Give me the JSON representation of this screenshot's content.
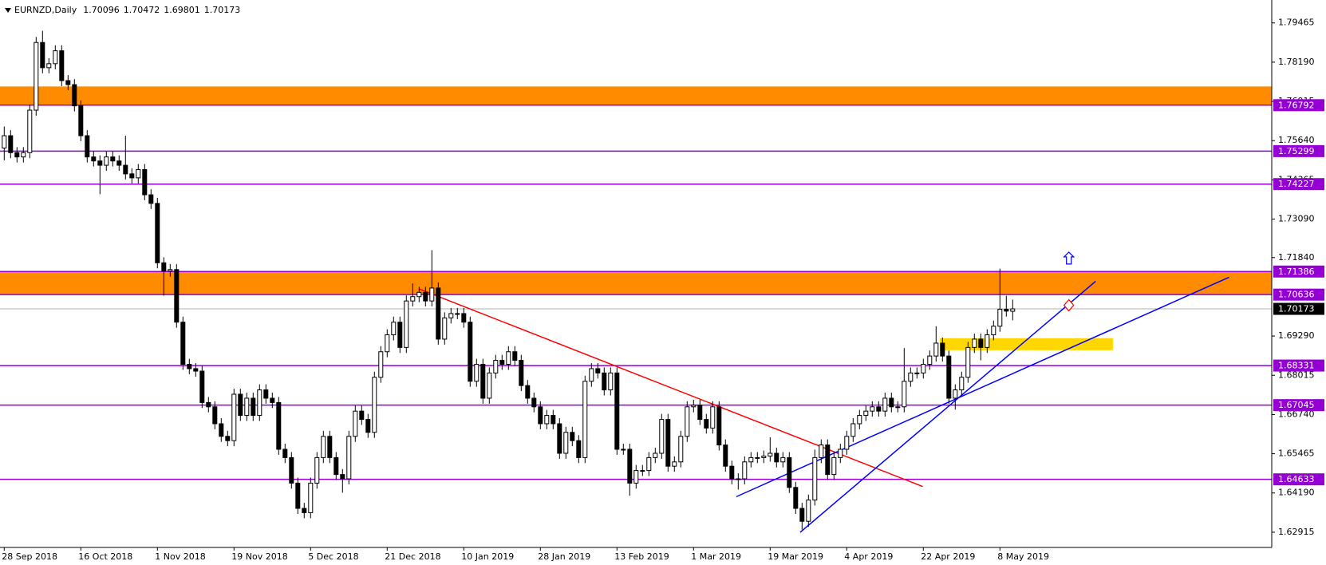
{
  "chart_data": {
    "type": "candlestick",
    "title": "EURNZD,Daily",
    "categories": [
      "28 Sep 2018",
      null,
      null,
      null,
      null,
      null,
      null,
      null,
      null,
      null,
      null,
      null,
      "16 Oct 2018",
      null,
      null,
      null,
      null,
      null,
      null,
      null,
      null,
      null,
      null,
      null,
      "1 Nov 2018",
      null,
      null,
      null,
      null,
      null,
      null,
      null,
      null,
      null,
      null,
      null,
      "19 Nov 2018",
      null,
      null,
      null,
      null,
      null,
      null,
      null,
      null,
      null,
      null,
      null,
      "5 Dec 2018",
      null,
      null,
      null,
      null,
      null,
      null,
      null,
      null,
      null,
      null,
      null,
      "21 Dec 2018",
      null,
      null,
      null,
      null,
      null,
      null,
      null,
      null,
      null,
      null,
      null,
      "10 Jan 2019",
      null,
      null,
      null,
      null,
      null,
      null,
      null,
      null,
      null,
      null,
      null,
      "28 Jan 2019",
      null,
      null,
      null,
      null,
      null,
      null,
      null,
      null,
      null,
      null,
      null,
      "13 Feb 2019",
      null,
      null,
      null,
      null,
      null,
      null,
      null,
      null,
      null,
      null,
      null,
      "1 Mar 2019",
      null,
      null,
      null,
      null,
      null,
      null,
      null,
      null,
      null,
      null,
      null,
      "19 Mar 2019",
      null,
      null,
      null,
      null,
      null,
      null,
      null,
      null,
      null,
      null,
      null,
      "4 Apr 2019",
      null,
      null,
      null,
      null,
      null,
      null,
      null,
      null,
      null,
      null,
      null,
      "22 Apr 2019",
      null,
      null,
      null,
      null,
      null,
      null,
      null,
      null,
      null,
      null,
      null,
      "8 May 2019",
      null,
      null
    ],
    "ohlc": [
      [
        1.754,
        1.761,
        1.75,
        1.758
      ],
      [
        1.758,
        1.7598,
        1.7507,
        1.7525
      ],
      [
        1.7525,
        1.7543,
        1.7493,
        1.7511
      ],
      [
        1.7511,
        1.7543,
        1.7493,
        1.7525
      ],
      [
        1.7525,
        1.7681,
        1.7507,
        1.7663
      ],
      [
        1.7663,
        1.7901,
        1.7645,
        1.7883
      ],
      [
        1.7883,
        1.7921,
        1.7783,
        1.7801
      ],
      [
        1.7801,
        1.7832,
        1.7783,
        1.7814
      ],
      [
        1.7814,
        1.7874,
        1.7796,
        1.7856
      ],
      [
        1.7856,
        1.7874,
        1.7741,
        1.7759
      ],
      [
        1.7759,
        1.7777,
        1.7728,
        1.7746
      ],
      [
        1.7746,
        1.7764,
        1.7659,
        1.7677
      ],
      [
        1.7677,
        1.7695,
        1.7562,
        1.758
      ],
      [
        1.758,
        1.7598,
        1.7493,
        1.7511
      ],
      [
        1.7511,
        1.7529,
        1.748,
        1.7498
      ],
      [
        1.7498,
        1.7516,
        1.739,
        1.7484
      ],
      [
        1.7484,
        1.7529,
        1.7466,
        1.7511
      ],
      [
        1.7511,
        1.7529,
        1.748,
        1.7498
      ],
      [
        1.7498,
        1.7516,
        1.7466,
        1.7484
      ],
      [
        1.7484,
        1.758,
        1.7438,
        1.7456
      ],
      [
        1.7456,
        1.7474,
        1.7425,
        1.7443
      ],
      [
        1.7443,
        1.7488,
        1.7425,
        1.747
      ],
      [
        1.747,
        1.7488,
        1.737,
        1.7388
      ],
      [
        1.7388,
        1.7406,
        1.7342,
        1.736
      ],
      [
        1.736,
        1.7378,
        1.7149,
        1.7167
      ],
      [
        1.7167,
        1.7185,
        1.706,
        1.714
      ],
      [
        1.714,
        1.7163,
        1.7122,
        1.7145
      ],
      [
        1.7145,
        1.7163,
        1.6956,
        1.6974
      ],
      [
        1.6974,
        1.6992,
        1.6819,
        1.6837
      ],
      [
        1.6837,
        1.6855,
        1.6805,
        1.6823
      ],
      [
        1.6823,
        1.6841,
        1.6797,
        1.6815
      ],
      [
        1.6815,
        1.6833,
        1.6695,
        1.6713
      ],
      [
        1.6713,
        1.6731,
        1.6681,
        1.6699
      ],
      [
        1.6699,
        1.6717,
        1.6626,
        1.6644
      ],
      [
        1.6644,
        1.6662,
        1.6585,
        1.6603
      ],
      [
        1.6603,
        1.6621,
        1.6571,
        1.6589
      ],
      [
        1.6589,
        1.6758,
        1.6571,
        1.674
      ],
      [
        1.674,
        1.6758,
        1.6653,
        1.6671
      ],
      [
        1.6671,
        1.6745,
        1.6653,
        1.6727
      ],
      [
        1.6727,
        1.6745,
        1.6653,
        1.6671
      ],
      [
        1.6671,
        1.6772,
        1.6653,
        1.6754
      ],
      [
        1.6754,
        1.6772,
        1.6709,
        1.6727
      ],
      [
        1.6727,
        1.6745,
        1.6695,
        1.6713
      ],
      [
        1.6713,
        1.6731,
        1.6543,
        1.6561
      ],
      [
        1.6561,
        1.6579,
        1.6516,
        1.6534
      ],
      [
        1.6534,
        1.6552,
        1.6433,
        1.6451
      ],
      [
        1.6451,
        1.6469,
        1.6351,
        1.6369
      ],
      [
        1.6369,
        1.6387,
        1.6337,
        1.6355
      ],
      [
        1.6355,
        1.6469,
        1.6337,
        1.6451
      ],
      [
        1.6451,
        1.6552,
        1.6433,
        1.6534
      ],
      [
        1.6534,
        1.6621,
        1.6516,
        1.6603
      ],
      [
        1.6603,
        1.6621,
        1.6516,
        1.6534
      ],
      [
        1.6534,
        1.6552,
        1.6461,
        1.6479
      ],
      [
        1.6479,
        1.6497,
        1.642,
        1.6465
      ],
      [
        1.6465,
        1.6621,
        1.6447,
        1.6603
      ],
      [
        1.6603,
        1.6703,
        1.6585,
        1.6685
      ],
      [
        1.6685,
        1.6703,
        1.664,
        1.6658
      ],
      [
        1.6658,
        1.6676,
        1.6598,
        1.6616
      ],
      [
        1.6616,
        1.6813,
        1.6598,
        1.6795
      ],
      [
        1.6795,
        1.6896,
        1.6777,
        1.6878
      ],
      [
        1.6878,
        1.6951,
        1.686,
        1.6933
      ],
      [
        1.6933,
        1.6992,
        1.6915,
        1.6974
      ],
      [
        1.6974,
        1.6992,
        1.6874,
        1.6892
      ],
      [
        1.6892,
        1.7061,
        1.6874,
        1.7043
      ],
      [
        1.7043,
        1.71,
        1.7025,
        1.7057
      ],
      [
        1.7057,
        1.7089,
        1.7039,
        1.7071
      ],
      [
        1.7071,
        1.7089,
        1.7025,
        1.7043
      ],
      [
        1.7043,
        1.7208,
        1.7025,
        1.7085
      ],
      [
        1.7085,
        1.7103,
        1.6901,
        1.6919
      ],
      [
        1.6919,
        1.7006,
        1.6901,
        1.6988
      ],
      [
        1.6988,
        1.702,
        1.697,
        1.7002
      ],
      [
        1.7002,
        1.702,
        1.6984,
        1.7002
      ],
      [
        1.7002,
        1.702,
        1.6956,
        1.6974
      ],
      [
        1.6974,
        1.6992,
        1.6764,
        1.6782
      ],
      [
        1.6782,
        1.6855,
        1.6764,
        1.6837
      ],
      [
        1.6837,
        1.6855,
        1.6709,
        1.6727
      ],
      [
        1.6727,
        1.6827,
        1.6709,
        1.6809
      ],
      [
        1.6809,
        1.6868,
        1.6791,
        1.685
      ],
      [
        1.685,
        1.6868,
        1.6819,
        1.6837
      ],
      [
        1.6837,
        1.6896,
        1.6819,
        1.6878
      ],
      [
        1.6878,
        1.6896,
        1.6832,
        1.685
      ],
      [
        1.685,
        1.6868,
        1.675,
        1.6768
      ],
      [
        1.6768,
        1.6786,
        1.6709,
        1.6727
      ],
      [
        1.6727,
        1.6745,
        1.6681,
        1.6699
      ],
      [
        1.6699,
        1.6717,
        1.6626,
        1.6644
      ],
      [
        1.6644,
        1.6689,
        1.6626,
        1.6671
      ],
      [
        1.6671,
        1.6689,
        1.6626,
        1.6644
      ],
      [
        1.6644,
        1.6662,
        1.653,
        1.6548
      ],
      [
        1.6548,
        1.6634,
        1.653,
        1.6616
      ],
      [
        1.6616,
        1.6634,
        1.6571,
        1.6589
      ],
      [
        1.6589,
        1.6607,
        1.6516,
        1.6534
      ],
      [
        1.6534,
        1.68,
        1.6516,
        1.6782
      ],
      [
        1.6782,
        1.6841,
        1.6764,
        1.6823
      ],
      [
        1.6823,
        1.6841,
        1.6791,
        1.6809
      ],
      [
        1.6809,
        1.6827,
        1.6736,
        1.6754
      ],
      [
        1.6754,
        1.6827,
        1.6736,
        1.6809
      ],
      [
        1.6809,
        1.6827,
        1.6543,
        1.6561
      ],
      [
        1.6561,
        1.6579,
        1.6543,
        1.6561
      ],
      [
        1.6561,
        1.6579,
        1.641,
        1.6451
      ],
      [
        1.6451,
        1.651,
        1.6433,
        1.6492
      ],
      [
        1.6492,
        1.651,
        1.6474,
        1.6492
      ],
      [
        1.6492,
        1.6552,
        1.6474,
        1.6534
      ],
      [
        1.6534,
        1.6566,
        1.6516,
        1.6548
      ],
      [
        1.6548,
        1.6676,
        1.653,
        1.6658
      ],
      [
        1.6658,
        1.6676,
        1.6488,
        1.6506
      ],
      [
        1.6506,
        1.6538,
        1.6488,
        1.652
      ],
      [
        1.652,
        1.6621,
        1.6502,
        1.6603
      ],
      [
        1.6603,
        1.6717,
        1.6585,
        1.6699
      ],
      [
        1.6699,
        1.6722,
        1.6681,
        1.6704
      ],
      [
        1.6704,
        1.6722,
        1.664,
        1.6658
      ],
      [
        1.6658,
        1.6676,
        1.6612,
        1.663
      ],
      [
        1.663,
        1.6717,
        1.6612,
        1.6699
      ],
      [
        1.6699,
        1.6717,
        1.6557,
        1.6575
      ],
      [
        1.6575,
        1.6593,
        1.6488,
        1.6506
      ],
      [
        1.6506,
        1.6524,
        1.6447,
        1.6465
      ],
      [
        1.6465,
        1.6483,
        1.643,
        1.6465
      ],
      [
        1.6465,
        1.6538,
        1.6447,
        1.652
      ],
      [
        1.652,
        1.6552,
        1.6502,
        1.6534
      ],
      [
        1.6534,
        1.6552,
        1.6516,
        1.6534
      ],
      [
        1.6534,
        1.6557,
        1.6516,
        1.6539
      ],
      [
        1.6539,
        1.66,
        1.6521,
        1.6548
      ],
      [
        1.6548,
        1.6566,
        1.6502,
        1.652
      ],
      [
        1.652,
        1.6552,
        1.6502,
        1.6534
      ],
      [
        1.6534,
        1.6552,
        1.6419,
        1.6437
      ],
      [
        1.6437,
        1.6455,
        1.6351,
        1.6369
      ],
      [
        1.6369,
        1.6387,
        1.63,
        1.6327
      ],
      [
        1.6327,
        1.6414,
        1.6309,
        1.6396
      ],
      [
        1.6396,
        1.656,
        1.6378,
        1.6534
      ],
      [
        1.6534,
        1.6593,
        1.6516,
        1.6575
      ],
      [
        1.6575,
        1.6593,
        1.6461,
        1.6479
      ],
      [
        1.6479,
        1.6552,
        1.6461,
        1.6534
      ],
      [
        1.6534,
        1.6579,
        1.6516,
        1.6561
      ],
      [
        1.6561,
        1.6621,
        1.6543,
        1.6603
      ],
      [
        1.6603,
        1.6662,
        1.6585,
        1.6644
      ],
      [
        1.6644,
        1.6689,
        1.6626,
        1.6671
      ],
      [
        1.6671,
        1.6703,
        1.6653,
        1.6685
      ],
      [
        1.6685,
        1.6717,
        1.6667,
        1.6699
      ],
      [
        1.6699,
        1.6717,
        1.6667,
        1.6685
      ],
      [
        1.6685,
        1.6745,
        1.6667,
        1.6727
      ],
      [
        1.6727,
        1.6745,
        1.6681,
        1.6699
      ],
      [
        1.6699,
        1.6717,
        1.6681,
        1.6699
      ],
      [
        1.6699,
        1.689,
        1.6681,
        1.6782
      ],
      [
        1.6782,
        1.6827,
        1.6764,
        1.6809
      ],
      [
        1.6809,
        1.6827,
        1.6791,
        1.6809
      ],
      [
        1.6809,
        1.6855,
        1.6791,
        1.6837
      ],
      [
        1.6837,
        1.6882,
        1.6819,
        1.6864
      ],
      [
        1.6864,
        1.6961,
        1.6846,
        1.6906
      ],
      [
        1.6906,
        1.6924,
        1.6846,
        1.6864
      ],
      [
        1.6864,
        1.6882,
        1.6709,
        1.6727
      ],
      [
        1.6727,
        1.6772,
        1.669,
        1.6754
      ],
      [
        1.6754,
        1.6813,
        1.6736,
        1.6795
      ],
      [
        1.6795,
        1.691,
        1.6777,
        1.6892
      ],
      [
        1.6892,
        1.6937,
        1.6874,
        1.6919
      ],
      [
        1.6919,
        1.6937,
        1.685,
        1.6892
      ],
      [
        1.6892,
        1.6951,
        1.6874,
        1.6933
      ],
      [
        1.6933,
        1.6979,
        1.6915,
        1.6961
      ],
      [
        1.6961,
        1.7148,
        1.6943,
        1.7016
      ],
      [
        1.7016,
        1.706,
        1.6992,
        1.701
      ],
      [
        1.70096,
        1.70472,
        1.69801,
        1.70173
      ]
    ],
    "up_color": "#ffffff",
    "down_color": "#000000",
    "wick_color": "#000000",
    "ylim": [
      1.6242,
      1.8021
    ],
    "yticks": [
      1.79465,
      {
        "value": 1.7819,
        "label": "1.78190"
      },
      1.76915,
      {
        "value": 1.7564,
        "label": "1.75640"
      },
      1.74365,
      {
        "value": 1.7309,
        "label": "1.73090"
      },
      {
        "value": 1.7184,
        "label": "1.71840"
      },
      {
        "value": 1.6929,
        "label": "1.69290"
      },
      1.68015,
      {
        "value": 1.6674,
        "label": "1.66740"
      },
      1.65465,
      {
        "value": 1.6419,
        "label": "1.64190"
      },
      1.62915
    ],
    "levels": [
      1.76792,
      1.75299,
      1.74227,
      1.71386,
      1.70636,
      1.68331,
      1.67045,
      1.64633
    ],
    "level_color": "#9400d3",
    "price_line_color": "#b0b0b0",
    "zones": [
      {
        "from": 1.76792,
        "to": 1.774,
        "color": "#ff8c00"
      },
      {
        "from": 1.70636,
        "to": 1.71386,
        "color": "#ff8c00"
      },
      {
        "from": 1.6883,
        "to": 1.6922,
        "x": [
          146.6,
          173.7
        ],
        "color": "#ffd700"
      }
    ],
    "trendlines": [
      {
        "color": "#ff0000",
        "points": [
          [
            65.0,
            1.7082
          ],
          [
            143.9,
            1.644
          ]
        ]
      },
      {
        "color": "#0000ff",
        "points": [
          [
            114.7,
            1.6407
          ],
          [
            191.9,
            1.712
          ]
        ]
      },
      {
        "color": "#0000ff",
        "points": [
          [
            124.7,
            1.6291
          ],
          [
            171.0,
            1.7107
          ]
        ]
      }
    ],
    "markers": [
      {
        "shape": "up",
        "color": "#0000ff",
        "x": 166.8,
        "y": 1.7181
      },
      {
        "shape": "diamond",
        "color": "#ff0000",
        "x": 166.8,
        "y": 1.7029
      }
    ]
  }
}
